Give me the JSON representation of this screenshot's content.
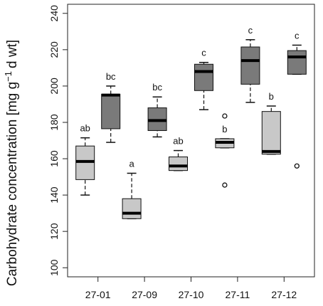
{
  "chart_data": {
    "type": "boxplot",
    "ylabel_main": "Carbohydrate concentration [mg g",
    "ylabel_sup": "−1",
    "ylabel_tail": "d wt]",
    "ylim": [
      95,
      245
    ],
    "yticks": [
      "100",
      "120",
      "140",
      "160",
      "180",
      "200",
      "220",
      "240"
    ],
    "categories": [
      "27-01",
      "27-09",
      "27-10",
      "27-11",
      "27-12"
    ],
    "colors": {
      "light": "#c8c8c8",
      "dark": "#7a7a7a"
    },
    "boxes": [
      {
        "category": "27-01",
        "shade": "light",
        "whisker_low": 140,
        "q1": 148.5,
        "median": 158.5,
        "q3": 167,
        "whisker_high": 171.5,
        "outliers": [],
        "label": "ab"
      },
      {
        "category": "27-01",
        "shade": "dark",
        "whisker_low": 169,
        "q1": 176.5,
        "median": 195,
        "q3": 195.5,
        "whisker_high": 200,
        "outliers": [],
        "label": "bc"
      },
      {
        "category": "27-09",
        "shade": "light",
        "whisker_low": 127,
        "q1": 127,
        "median": 130,
        "q3": 138,
        "whisker_high": 152,
        "outliers": [],
        "label": "a"
      },
      {
        "category": "27-09",
        "shade": "dark",
        "whisker_low": 172,
        "q1": 175.5,
        "median": 181,
        "q3": 188,
        "whisker_high": 194,
        "outliers": [],
        "label": "bc"
      },
      {
        "category": "27-10",
        "shade": "light",
        "whisker_low": 153.5,
        "q1": 153.5,
        "median": 156,
        "q3": 161,
        "whisker_high": 164.5,
        "outliers": [],
        "label": "ab"
      },
      {
        "category": "27-10",
        "shade": "dark",
        "whisker_low": 187,
        "q1": 197.5,
        "median": 208,
        "q3": 212,
        "whisker_high": 213,
        "outliers": [],
        "label": "c"
      },
      {
        "category": "27-11",
        "shade": "light",
        "whisker_low": 166,
        "q1": 166,
        "median": 169,
        "q3": 171,
        "whisker_high": 171,
        "outliers": [
          145.5,
          183.5
        ],
        "label": "b"
      },
      {
        "category": "27-11",
        "shade": "dark",
        "whisker_low": 191,
        "q1": 201,
        "median": 214,
        "q3": 221.5,
        "whisker_high": 225.5,
        "outliers": [],
        "label": "c"
      },
      {
        "category": "27-12",
        "shade": "light",
        "whisker_low": 162.5,
        "q1": 162.5,
        "median": 164,
        "q3": 186,
        "whisker_high": 189,
        "outliers": [],
        "label": "b"
      },
      {
        "category": "27-12",
        "shade": "dark",
        "whisker_low": 206.5,
        "q1": 206.5,
        "median": 216,
        "q3": 219.5,
        "whisker_high": 222.5,
        "outliers": [
          156
        ],
        "label": "c"
      }
    ]
  }
}
